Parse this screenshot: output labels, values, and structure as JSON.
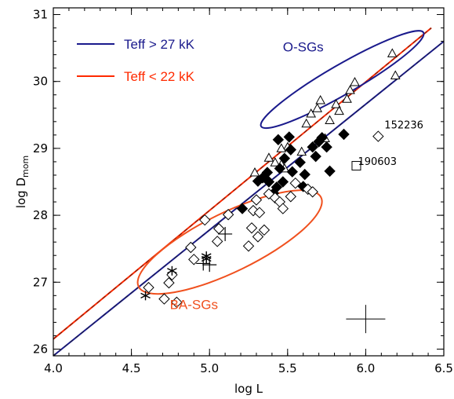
{
  "colors": {
    "blue": "#1a1a8c",
    "red": "#ff2a00",
    "orange": "#f0501e",
    "fit_blue": "#3a3aa8",
    "black": "#000000"
  },
  "chart_data": {
    "type": "scatter",
    "xlabel": "log L",
    "ylabel_main": "log D",
    "ylabel_sub": "mom",
    "xlim": [
      4.0,
      6.5
    ],
    "ylim": [
      25.9,
      31.1
    ],
    "xticks": [
      4.0,
      4.5,
      5.0,
      5.5,
      6.0,
      6.5
    ],
    "xtick_labels": [
      "4.0",
      "4.5",
      "5.0",
      "5.5",
      "6.0",
      "6.5"
    ],
    "yticks": [
      26,
      27,
      28,
      29,
      30,
      31
    ],
    "ytick_labels": [
      "26",
      "27",
      "28",
      "29",
      "30",
      "31"
    ],
    "legend": [
      {
        "label": "Teff > 27 kK",
        "color": "#1a1a8c"
      },
      {
        "label": "Teff < 22 kK",
        "color": "#ff2a00"
      }
    ],
    "region_labels": [
      {
        "text": "O-SGs",
        "color": "#1a1a8c",
        "x": 5.6,
        "y": 30.45
      },
      {
        "text": "BA-SGs",
        "color": "#f0501e",
        "x": 4.9,
        "y": 26.6
      }
    ],
    "annotations": [
      {
        "text": "152236",
        "x": 6.12,
        "y": 29.3
      },
      {
        "text": "190603",
        "x": 5.95,
        "y": 28.75
      }
    ],
    "fit_lines": [
      {
        "color": "#ff2a00",
        "x": [
          4.0,
          6.42
        ],
        "y": [
          26.15,
          30.8
        ],
        "dashed_overlay": true
      },
      {
        "color": "#1a1a8c",
        "x": [
          4.0,
          6.5
        ],
        "y": [
          25.9,
          30.6
        ],
        "dashed_overlay": true
      }
    ],
    "ellipses": [
      {
        "name": "O-SGs",
        "color": "#1a1a8c",
        "cx": 5.85,
        "cy": 30.03,
        "rx": 0.6,
        "ry": 0.1,
        "angle_deg": -30
      },
      {
        "name": "BA-SGs",
        "color": "#f0501e",
        "cx": 5.13,
        "cy": 27.6,
        "rx": 0.65,
        "ry": 0.2,
        "angle_deg": -26
      }
    ],
    "series": [
      {
        "marker": "triangle-open",
        "points": [
          [
            5.29,
            28.64
          ],
          [
            5.38,
            28.86
          ],
          [
            5.42,
            28.79
          ],
          [
            5.46,
            28.76
          ],
          [
            5.48,
            28.7
          ],
          [
            5.5,
            29.02
          ],
          [
            5.46,
            29.0
          ],
          [
            5.59,
            28.95
          ],
          [
            5.62,
            29.37
          ],
          [
            5.65,
            29.52
          ],
          [
            5.69,
            29.6
          ],
          [
            5.71,
            29.72
          ],
          [
            5.74,
            29.15
          ],
          [
            5.77,
            29.42
          ],
          [
            5.81,
            29.66
          ],
          [
            5.83,
            29.56
          ],
          [
            5.88,
            29.74
          ],
          [
            5.9,
            29.87
          ],
          [
            5.93,
            29.99
          ],
          [
            6.17,
            30.42
          ],
          [
            6.19,
            30.09
          ]
        ]
      },
      {
        "marker": "diamond-filled",
        "points": [
          [
            5.21,
            28.1
          ],
          [
            5.31,
            28.51
          ],
          [
            5.34,
            28.56
          ],
          [
            5.37,
            28.64
          ],
          [
            5.38,
            28.5
          ],
          [
            5.41,
            28.33
          ],
          [
            5.43,
            28.42
          ],
          [
            5.44,
            29.13
          ],
          [
            5.45,
            28.7
          ],
          [
            5.47,
            28.5
          ],
          [
            5.48,
            28.85
          ],
          [
            5.51,
            29.17
          ],
          [
            5.52,
            28.98
          ],
          [
            5.53,
            28.65
          ],
          [
            5.58,
            28.79
          ],
          [
            5.6,
            28.43
          ],
          [
            5.61,
            28.61
          ],
          [
            5.66,
            29.02
          ],
          [
            5.68,
            28.88
          ],
          [
            5.7,
            29.1
          ],
          [
            5.72,
            29.16
          ],
          [
            5.75,
            29.02
          ],
          [
            5.77,
            28.66
          ],
          [
            5.86,
            29.21
          ]
        ]
      },
      {
        "marker": "diamond-open",
        "points": [
          [
            4.61,
            26.92
          ],
          [
            4.71,
            26.75
          ],
          [
            4.74,
            26.99
          ],
          [
            4.76,
            27.11
          ],
          [
            4.79,
            26.7
          ],
          [
            4.88,
            27.52
          ],
          [
            4.9,
            27.34
          ],
          [
            4.97,
            27.93
          ],
          [
            5.05,
            27.61
          ],
          [
            5.06,
            27.8
          ],
          [
            5.12,
            28.01
          ],
          [
            5.25,
            27.54
          ],
          [
            5.27,
            27.81
          ],
          [
            5.28,
            28.07
          ],
          [
            5.3,
            28.23
          ],
          [
            5.31,
            27.68
          ],
          [
            5.32,
            28.04
          ],
          [
            5.35,
            27.78
          ],
          [
            5.38,
            28.32
          ],
          [
            5.42,
            28.26
          ],
          [
            5.45,
            28.2
          ],
          [
            5.47,
            28.1
          ],
          [
            5.52,
            28.28
          ],
          [
            5.55,
            28.48
          ],
          [
            5.63,
            28.39
          ],
          [
            5.66,
            28.35
          ],
          [
            6.08,
            29.18
          ]
        ]
      },
      {
        "marker": "square-open",
        "points": [
          [
            5.94,
            28.74
          ]
        ]
      },
      {
        "marker": "asterisk",
        "points": [
          [
            4.59,
            26.8
          ],
          [
            4.76,
            27.17
          ],
          [
            4.98,
            27.39
          ],
          [
            4.98,
            27.35
          ]
        ]
      },
      {
        "marker": "plus",
        "points": [
          [
            4.96,
            27.28
          ],
          [
            5.0,
            27.26
          ],
          [
            5.1,
            27.72
          ]
        ]
      },
      {
        "marker": "errorbar",
        "points": [
          [
            6.0,
            26.45
          ]
        ]
      }
    ]
  }
}
